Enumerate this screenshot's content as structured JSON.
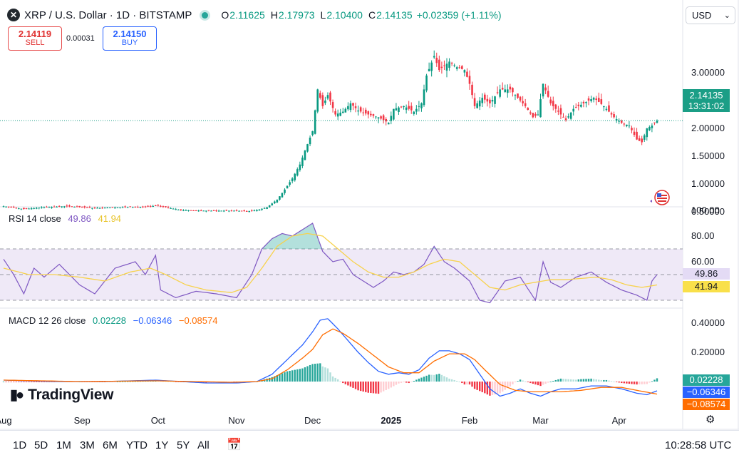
{
  "header": {
    "symbol": "XRP / U.S. Dollar · 1D · BITSTAMP",
    "logo": "✕",
    "o_label": "O",
    "o": "2.11625",
    "h_label": "H",
    "h": "2.17973",
    "l_label": "L",
    "l": "2.10400",
    "c_label": "C",
    "c": "2.14135",
    "change": "+0.02359 (+1.11%)"
  },
  "trade": {
    "sell_price": "2.14119",
    "sell_label": "SELL",
    "spread": "0.00031",
    "buy_price": "2.14150",
    "buy_label": "BUY"
  },
  "currency": "USD",
  "last_price_label": "2.14135",
  "countdown": "13:31:02",
  "rsi_label": {
    "name": "RSI 14 close",
    "rsi": "49.86",
    "ma": "41.94"
  },
  "macd_label": {
    "name": "MACD 12 26 close",
    "hist": "0.02228",
    "macd": "−0.06346",
    "signal": "−0.08574"
  },
  "brand": "TradingView",
  "time_ranges": [
    "1D",
    "5D",
    "1M",
    "3M",
    "6M",
    "YTD",
    "1Y",
    "5Y",
    "All"
  ],
  "clock": "10:28:58 UTC",
  "colors": {
    "up": "#089981",
    "down": "#f23645",
    "rsi": "#7e57c2",
    "rsi_ma": "#f7d24d",
    "macd": "#2962ff",
    "signal": "#ff6d00"
  },
  "chart_data": {
    "type": "candlestick",
    "price_axis": {
      "ticks": [
        "3.00000",
        "2.50000",
        "2.00000",
        "1.50000",
        "1.00000",
        "0.50000"
      ],
      "values": [
        3.0,
        2.5,
        2.0,
        1.5,
        1.0,
        0.5
      ]
    },
    "rsi_axis": {
      "ticks": [
        "100.00",
        "80.00",
        "60.00"
      ],
      "values": [
        100,
        80,
        60
      ],
      "band": [
        30,
        70
      ]
    },
    "macd_axis": {
      "ticks": [
        "0.40000",
        "0.20000"
      ],
      "values": [
        0.4,
        0.2
      ]
    },
    "x_axis": {
      "labels": [
        "Aug",
        "Sep",
        "Oct",
        "Nov",
        "Dec",
        "2025",
        "Feb",
        "Mar",
        "Apr"
      ],
      "day_index": [
        0,
        31,
        61,
        92,
        122,
        153,
        184,
        212,
        243
      ]
    },
    "close_anchors": [
      [
        0,
        0.6
      ],
      [
        8,
        0.55
      ],
      [
        15,
        0.58
      ],
      [
        25,
        0.6
      ],
      [
        35,
        0.57
      ],
      [
        45,
        0.58
      ],
      [
        55,
        0.59
      ],
      [
        61,
        0.61
      ],
      [
        70,
        0.53
      ],
      [
        80,
        0.52
      ],
      [
        92,
        0.52
      ],
      [
        96,
        0.51
      ],
      [
        100,
        0.53
      ],
      [
        104,
        0.58
      ],
      [
        108,
        0.72
      ],
      [
        111,
        0.9
      ],
      [
        114,
        1.1
      ],
      [
        117,
        1.35
      ],
      [
        119,
        1.6
      ],
      [
        122,
        1.95
      ],
      [
        124,
        2.7
      ],
      [
        126,
        2.4
      ],
      [
        128,
        2.6
      ],
      [
        131,
        2.25
      ],
      [
        134,
        2.3
      ],
      [
        137,
        2.45
      ],
      [
        140,
        2.32
      ],
      [
        144,
        2.25
      ],
      [
        148,
        2.2
      ],
      [
        152,
        2.1
      ],
      [
        154,
        2.35
      ],
      [
        158,
        2.4
      ],
      [
        162,
        2.3
      ],
      [
        165,
        2.45
      ],
      [
        167,
        2.95
      ],
      [
        170,
        3.3
      ],
      [
        172,
        3.05
      ],
      [
        176,
        3.2
      ],
      [
        179,
        3.1
      ],
      [
        182,
        3.05
      ],
      [
        184,
        2.8
      ],
      [
        186,
        2.4
      ],
      [
        189,
        2.55
      ],
      [
        192,
        2.45
      ],
      [
        196,
        2.7
      ],
      [
        200,
        2.7
      ],
      [
        203,
        2.55
      ],
      [
        206,
        2.4
      ],
      [
        209,
        2.2
      ],
      [
        211,
        2.25
      ],
      [
        213,
        2.8
      ],
      [
        216,
        2.45
      ],
      [
        219,
        2.3
      ],
      [
        222,
        2.15
      ],
      [
        225,
        2.35
      ],
      [
        229,
        2.45
      ],
      [
        233,
        2.55
      ],
      [
        237,
        2.4
      ],
      [
        241,
        2.2
      ],
      [
        244,
        2.1
      ],
      [
        247,
        2.05
      ],
      [
        250,
        1.8
      ],
      [
        252,
        1.75
      ],
      [
        254,
        2.0
      ],
      [
        256,
        2.05
      ],
      [
        258,
        2.14
      ]
    ],
    "rsi_anchors": [
      [
        0,
        62
      ],
      [
        4,
        50
      ],
      [
        8,
        35
      ],
      [
        12,
        55
      ],
      [
        16,
        48
      ],
      [
        22,
        58
      ],
      [
        30,
        42
      ],
      [
        36,
        35
      ],
      [
        44,
        55
      ],
      [
        52,
        60
      ],
      [
        56,
        50
      ],
      [
        60,
        65
      ],
      [
        62,
        38
      ],
      [
        68,
        32
      ],
      [
        76,
        37
      ],
      [
        84,
        35
      ],
      [
        92,
        32
      ],
      [
        98,
        50
      ],
      [
        102,
        70
      ],
      [
        106,
        78
      ],
      [
        110,
        82
      ],
      [
        114,
        80
      ],
      [
        118,
        85
      ],
      [
        122,
        90
      ],
      [
        126,
        68
      ],
      [
        130,
        60
      ],
      [
        134,
        62
      ],
      [
        138,
        50
      ],
      [
        142,
        45
      ],
      [
        146,
        40
      ],
      [
        150,
        45
      ],
      [
        154,
        52
      ],
      [
        158,
        50
      ],
      [
        162,
        52
      ],
      [
        166,
        58
      ],
      [
        170,
        72
      ],
      [
        174,
        60
      ],
      [
        178,
        55
      ],
      [
        184,
        45
      ],
      [
        188,
        30
      ],
      [
        192,
        28
      ],
      [
        198,
        45
      ],
      [
        204,
        48
      ],
      [
        210,
        30
      ],
      [
        213,
        60
      ],
      [
        216,
        44
      ],
      [
        220,
        40
      ],
      [
        226,
        48
      ],
      [
        232,
        52
      ],
      [
        238,
        44
      ],
      [
        244,
        38
      ],
      [
        250,
        34
      ],
      [
        254,
        30
      ],
      [
        256,
        45
      ],
      [
        258,
        50
      ]
    ],
    "rsi_ma_anchors": [
      [
        0,
        55
      ],
      [
        10,
        50
      ],
      [
        20,
        50
      ],
      [
        30,
        48
      ],
      [
        40,
        45
      ],
      [
        50,
        52
      ],
      [
        58,
        55
      ],
      [
        64,
        50
      ],
      [
        72,
        42
      ],
      [
        80,
        38
      ],
      [
        90,
        36
      ],
      [
        96,
        40
      ],
      [
        102,
        55
      ],
      [
        108,
        72
      ],
      [
        114,
        80
      ],
      [
        120,
        82
      ],
      [
        126,
        80
      ],
      [
        132,
        70
      ],
      [
        138,
        60
      ],
      [
        144,
        52
      ],
      [
        150,
        48
      ],
      [
        156,
        48
      ],
      [
        162,
        52
      ],
      [
        168,
        58
      ],
      [
        174,
        62
      ],
      [
        180,
        60
      ],
      [
        186,
        50
      ],
      [
        192,
        40
      ],
      [
        198,
        38
      ],
      [
        204,
        42
      ],
      [
        210,
        44
      ],
      [
        216,
        46
      ],
      [
        222,
        46
      ],
      [
        228,
        47
      ],
      [
        234,
        48
      ],
      [
        240,
        46
      ],
      [
        246,
        42
      ],
      [
        252,
        40
      ],
      [
        258,
        41.94
      ]
    ],
    "macd_anchors": [
      [
        0,
        0.01
      ],
      [
        20,
        0.0
      ],
      [
        40,
        0.0
      ],
      [
        60,
        0.01
      ],
      [
        80,
        -0.01
      ],
      [
        92,
        -0.01
      ],
      [
        100,
        0.0
      ],
      [
        106,
        0.05
      ],
      [
        112,
        0.15
      ],
      [
        118,
        0.25
      ],
      [
        122,
        0.34
      ],
      [
        125,
        0.42
      ],
      [
        128,
        0.43
      ],
      [
        132,
        0.36
      ],
      [
        136,
        0.28
      ],
      [
        140,
        0.2
      ],
      [
        144,
        0.13
      ],
      [
        148,
        0.07
      ],
      [
        152,
        0.05
      ],
      [
        156,
        0.06
      ],
      [
        160,
        0.05
      ],
      [
        164,
        0.08
      ],
      [
        168,
        0.16
      ],
      [
        172,
        0.21
      ],
      [
        176,
        0.21
      ],
      [
        180,
        0.19
      ],
      [
        184,
        0.15
      ],
      [
        188,
        0.05
      ],
      [
        192,
        -0.05
      ],
      [
        196,
        -0.1
      ],
      [
        200,
        -0.08
      ],
      [
        204,
        -0.05
      ],
      [
        208,
        -0.08
      ],
      [
        212,
        -0.1
      ],
      [
        216,
        -0.07
      ],
      [
        220,
        -0.05
      ],
      [
        226,
        -0.05
      ],
      [
        232,
        -0.03
      ],
      [
        238,
        -0.03
      ],
      [
        244,
        -0.05
      ],
      [
        250,
        -0.08
      ],
      [
        254,
        -0.09
      ],
      [
        258,
        -0.06346
      ]
    ],
    "signal_anchors": [
      [
        0,
        0.01
      ],
      [
        30,
        0.0
      ],
      [
        60,
        0.005
      ],
      [
        90,
        -0.005
      ],
      [
        100,
        0.0
      ],
      [
        106,
        0.02
      ],
      [
        112,
        0.08
      ],
      [
        118,
        0.16
      ],
      [
        122,
        0.22
      ],
      [
        126,
        0.32
      ],
      [
        130,
        0.36
      ],
      [
        134,
        0.33
      ],
      [
        140,
        0.26
      ],
      [
        146,
        0.18
      ],
      [
        152,
        0.1
      ],
      [
        158,
        0.06
      ],
      [
        164,
        0.06
      ],
      [
        170,
        0.14
      ],
      [
        176,
        0.19
      ],
      [
        182,
        0.19
      ],
      [
        186,
        0.15
      ],
      [
        190,
        0.08
      ],
      [
        196,
        -0.02
      ],
      [
        202,
        -0.06
      ],
      [
        208,
        -0.07
      ],
      [
        214,
        -0.07
      ],
      [
        220,
        -0.07
      ],
      [
        228,
        -0.06
      ],
      [
        236,
        -0.04
      ],
      [
        244,
        -0.04
      ],
      [
        250,
        -0.06
      ],
      [
        258,
        -0.08574
      ]
    ]
  }
}
